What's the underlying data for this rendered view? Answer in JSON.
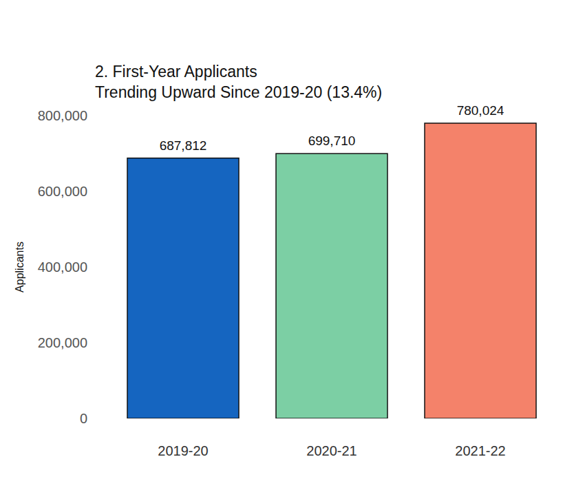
{
  "chart_data": {
    "type": "bar",
    "title": "2. First-Year Applicants",
    "subtitle": "Trending Upward Since 2019-20 (13.4%)",
    "y_label": "Applicants",
    "categories": [
      "2019-20",
      "2020-21",
      "2021-22"
    ],
    "values": [
      687812,
      699710,
      780024
    ],
    "value_labels": [
      "687,812",
      "699,710",
      "780,024"
    ],
    "colors": [
      "#1565c0",
      "#7ccfa4",
      "#f4826a"
    ],
    "ylim": [
      0,
      800000
    ],
    "yticks": [
      0,
      {
        "value": 200000,
        "label": "200,000"
      },
      {
        "value": 400000,
        "label": "400,000"
      },
      {
        "value": 600000,
        "label": "600,000"
      },
      {
        "value": 800000,
        "label": "800,000"
      }
    ],
    "grid": false,
    "data_labels": true
  }
}
